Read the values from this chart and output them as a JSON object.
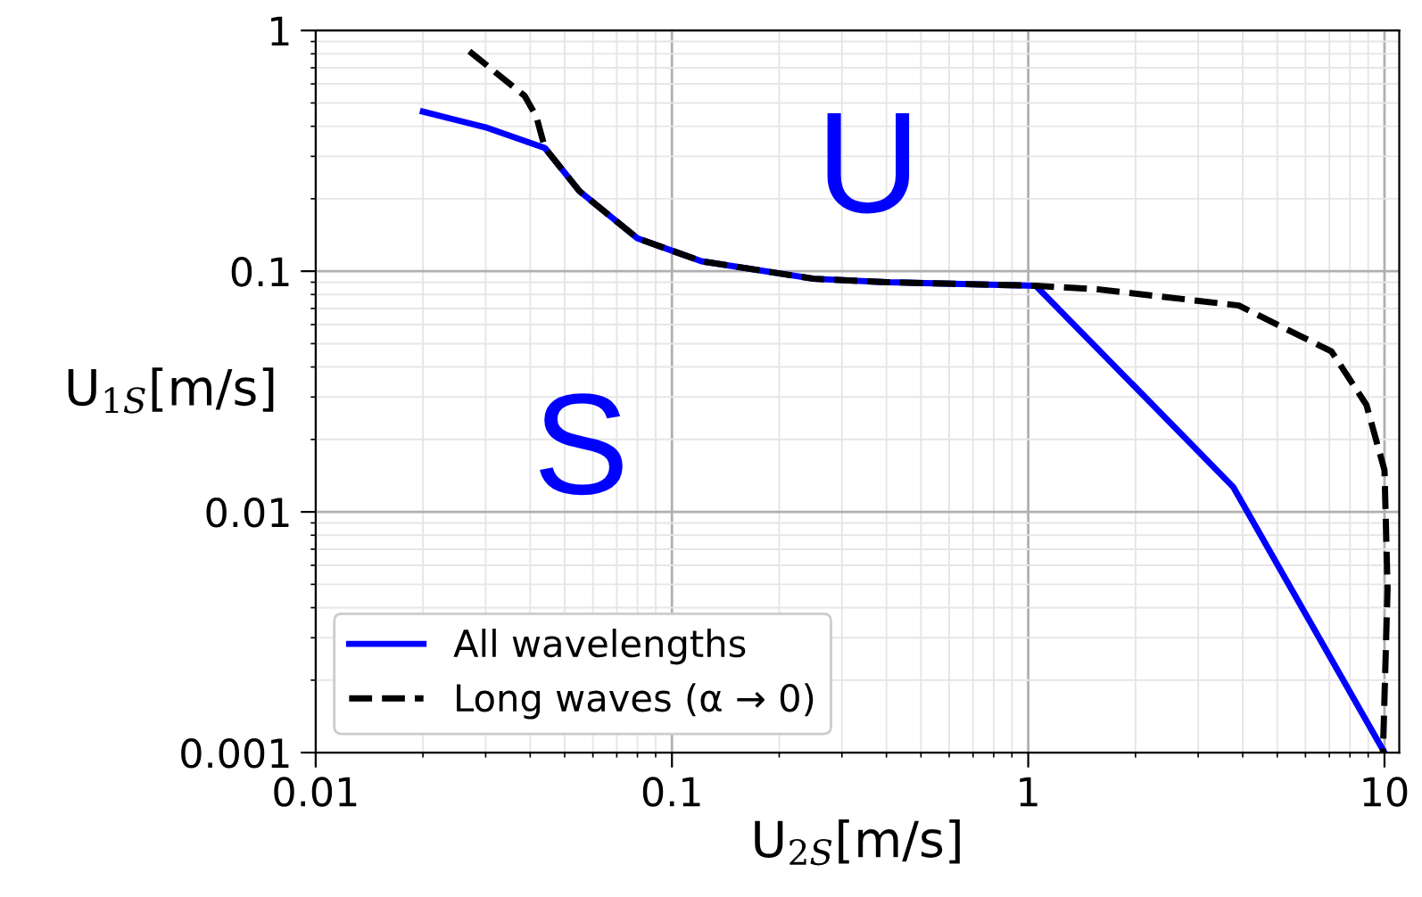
{
  "chart_data": {
    "type": "line",
    "xlabel": "U$_{2S}$[m/s]",
    "ylabel": "U$_{1S}$[m/s]",
    "log": "xy",
    "xlim": [
      0.01,
      11
    ],
    "xticks": [
      0.01,
      0.1,
      1,
      10
    ],
    "ylim": [
      0.001,
      1
    ],
    "yticks": [
      0.001,
      0.01,
      0.1,
      1
    ],
    "grid": true,
    "legend": "bottom left",
    "series": [
      {
        "name": "All wavelengths",
        "color": "#0000ff",
        "line_style": "solid",
        "x": [
          0.02,
          0.03,
          0.044,
          0.055,
          0.08,
          0.121,
          0.25,
          0.4,
          1.05,
          3.76,
          10
        ],
        "values": [
          0.46,
          0.396,
          0.325,
          0.215,
          0.137,
          0.11,
          0.093,
          0.09,
          0.087,
          0.0127,
          0.001
        ]
      },
      {
        "name": "Long waves (α → 0)",
        "color": "#000000",
        "line_style": "dashed",
        "x": [
          0.027,
          0.0386,
          0.0416,
          0.044,
          0.055,
          0.08,
          0.121,
          0.25,
          0.4,
          1.05,
          1.58,
          3.9,
          7.1,
          8.9,
          10,
          10.2,
          9.9
        ],
        "values": [
          0.82,
          0.535,
          0.44,
          0.325,
          0.215,
          0.137,
          0.11,
          0.093,
          0.09,
          0.087,
          0.084,
          0.072,
          0.0464,
          0.0278,
          0.0149,
          0.0048,
          0.001
        ]
      }
    ],
    "annotations": [
      "U",
      "S"
    ]
  }
}
